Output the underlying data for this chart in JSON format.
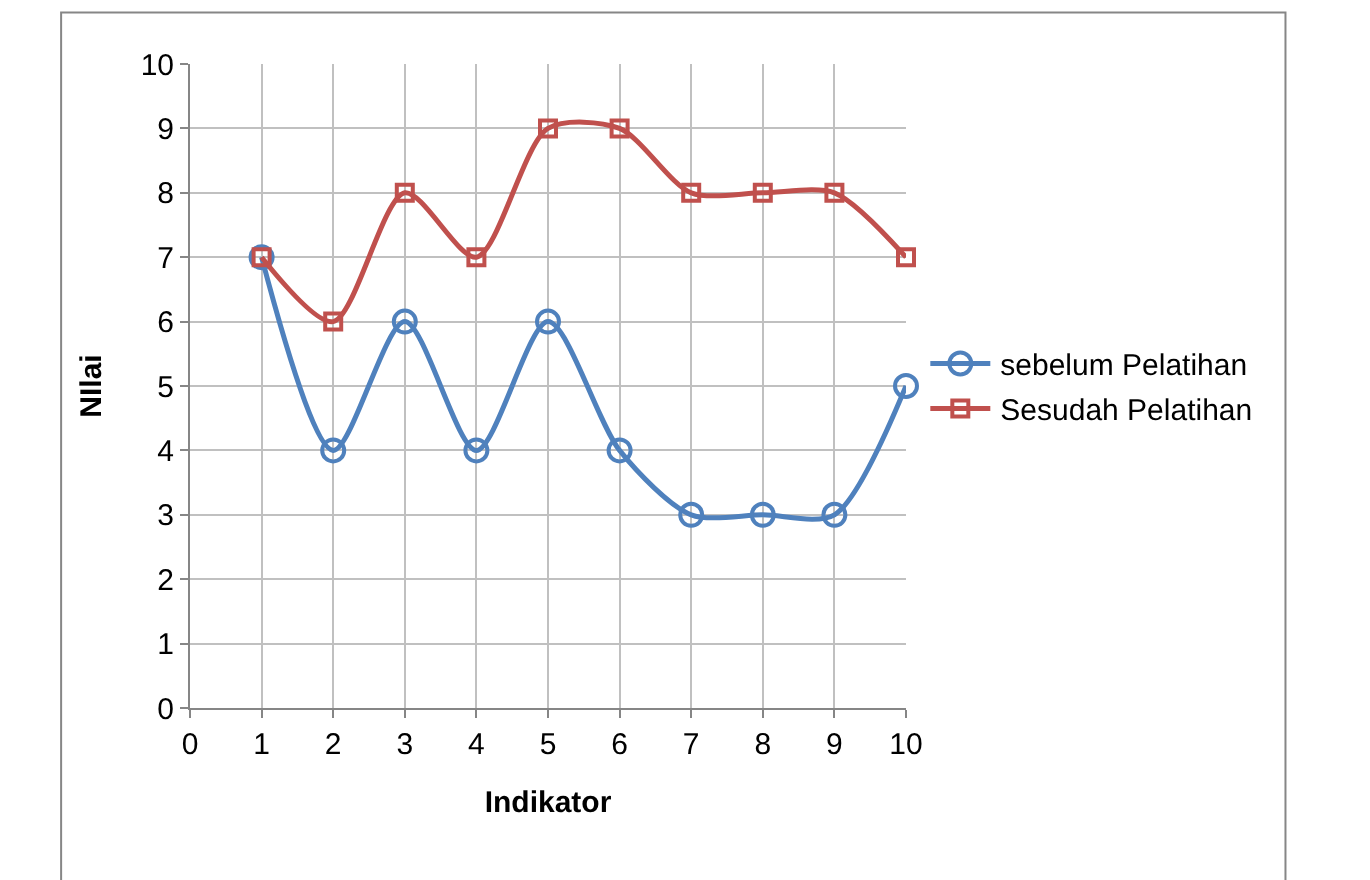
{
  "chart_data": {
    "type": "line",
    "xlabel": "Indikator",
    "ylabel": "NIlai",
    "x": [
      1,
      2,
      3,
      4,
      5,
      6,
      7,
      8,
      9,
      10
    ],
    "series": [
      {
        "name": "sebelum Pelatihan",
        "color": "#4f81bd",
        "marker": "circle",
        "values": [
          7,
          4,
          6,
          4,
          6,
          4,
          3,
          3,
          3,
          5
        ]
      },
      {
        "name": "Sesudah Pelatihan",
        "color": "#c0504d",
        "marker": "square",
        "values": [
          7,
          6,
          8,
          7,
          9,
          9,
          8,
          8,
          8,
          7
        ]
      }
    ],
    "xlim": [
      0,
      10
    ],
    "xticks": [
      0,
      1,
      2,
      3,
      4,
      5,
      6,
      7,
      8,
      9,
      10
    ],
    "ylim": [
      0,
      10
    ],
    "yticks": [
      0,
      1,
      2,
      3,
      4,
      5,
      6,
      7,
      8,
      9,
      10
    ],
    "grid": true,
    "legend": "right",
    "line_style": "solid"
  }
}
